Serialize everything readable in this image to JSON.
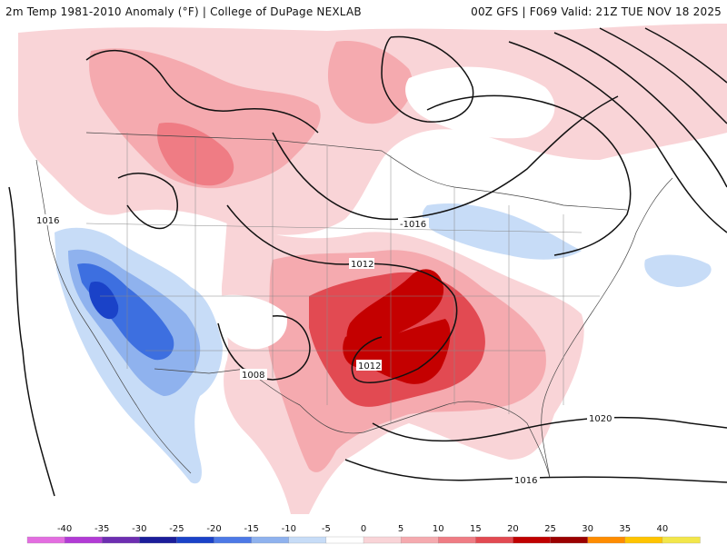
{
  "header": {
    "left": "2m Temp 1981-2010 Anomaly (°F) | College of DuPage NEXLAB",
    "right": "00Z GFS | F069 Valid: 21Z TUE NOV 18 2025"
  },
  "isobar_labels": [
    "1016",
    "-1016",
    "1012",
    "1012",
    "1008",
    "1020",
    "1016"
  ],
  "legend": {
    "ticks": [
      "-40",
      "-35",
      "-30",
      "-25",
      "-20",
      "-15",
      "-10",
      "-5",
      "0",
      "5",
      "10",
      "15",
      "20",
      "25",
      "30",
      "35",
      "40"
    ],
    "colors": [
      "#e36de0",
      "#b23bd5",
      "#6d2eb1",
      "#1b1d9a",
      "#1a42c8",
      "#4d79e6",
      "#8fb2ee",
      "#c7dcf7",
      "#ffffff",
      "#f9d4d7",
      "#f5aaaf",
      "#ef7c84",
      "#e24a52",
      "#c00000",
      "#9b0000",
      "#ff8c00",
      "#ffc400",
      "#f2e64a"
    ]
  },
  "colors": {
    "warm_light": "#f9d4d7",
    "warm_mid": "#f5aaaf",
    "warm_strong": "#e24a52",
    "hot": "#c40000",
    "cool_light": "#c7dcf7",
    "cool_mid": "#8fb2ee",
    "cool_strong": "#3d6fe0",
    "cold": "#1a42c8"
  }
}
